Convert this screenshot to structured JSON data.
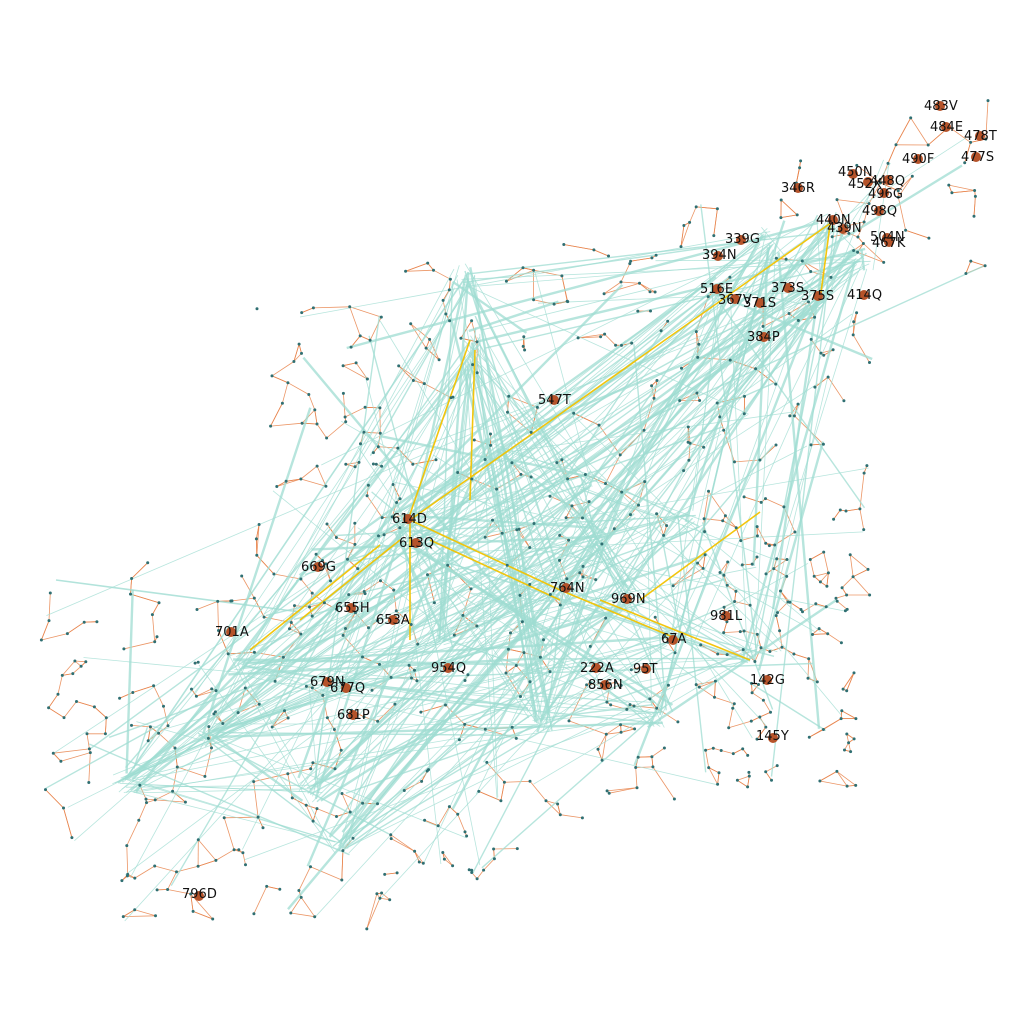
{
  "colors": {
    "background": "#ffffff",
    "local_edge": "#e8824a",
    "long_edge": "#9fdcd2",
    "highlight_edge": "#f2c200",
    "hub_node": "#b5532a",
    "small_node": "#2f6f72",
    "label": "#111111"
  },
  "hubs": [
    {
      "id": "483V"
    },
    {
      "id": "484E"
    },
    {
      "id": "478T"
    },
    {
      "id": "477S"
    },
    {
      "id": "490F"
    },
    {
      "id": "450N"
    },
    {
      "id": "452X"
    },
    {
      "id": "448Q"
    },
    {
      "id": "496G"
    },
    {
      "id": "346R"
    },
    {
      "id": "498Q"
    },
    {
      "id": "440N"
    },
    {
      "id": "439N"
    },
    {
      "id": "504N"
    },
    {
      "id": "467K"
    },
    {
      "id": "339G"
    },
    {
      "id": "394N"
    },
    {
      "id": "516E"
    },
    {
      "id": "373S"
    },
    {
      "id": "367V"
    },
    {
      "id": "371S"
    },
    {
      "id": "375S"
    },
    {
      "id": "414Q"
    },
    {
      "id": "384P"
    },
    {
      "id": "547T"
    },
    {
      "id": "614D"
    },
    {
      "id": "613Q"
    },
    {
      "id": "669G"
    },
    {
      "id": "764N"
    },
    {
      "id": "969N"
    },
    {
      "id": "655H"
    },
    {
      "id": "653A"
    },
    {
      "id": "981L"
    },
    {
      "id": "701A"
    },
    {
      "id": "67A"
    },
    {
      "id": "954Q"
    },
    {
      "id": "222A"
    },
    {
      "id": "95T"
    },
    {
      "id": "142G"
    },
    {
      "id": "679N"
    },
    {
      "id": "677Q"
    },
    {
      "id": "856N"
    },
    {
      "id": "681P"
    },
    {
      "id": "145Y"
    },
    {
      "id": "796D"
    }
  ]
}
